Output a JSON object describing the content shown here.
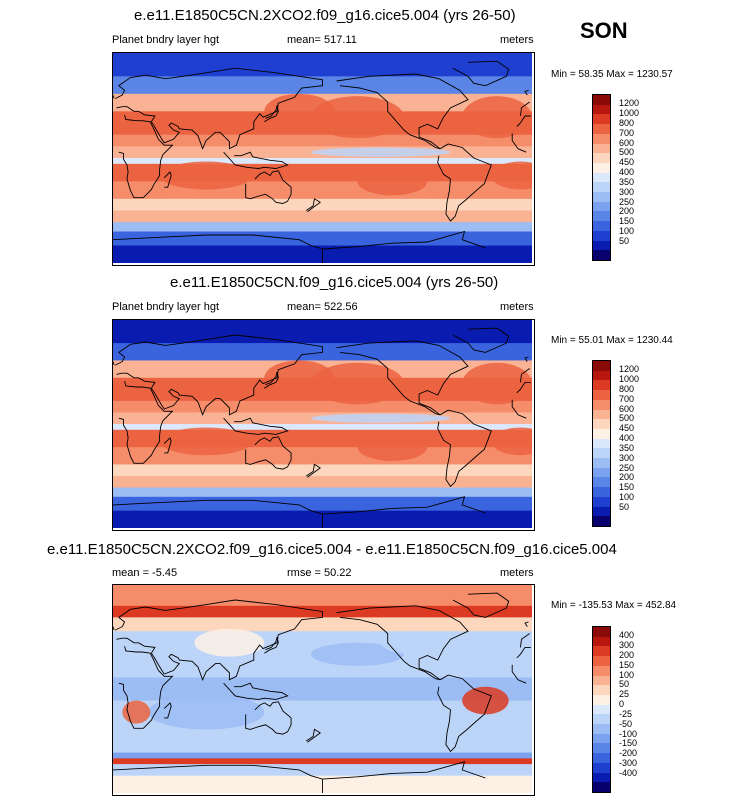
{
  "season": "SON",
  "colors": {
    "abs_scale": [
      "#08006d",
      "#0a1cb0",
      "#1e3fd0",
      "#3a63de",
      "#5a85e6",
      "#7aa2ee",
      "#9cbcf4",
      "#bcd4f8",
      "#dbe7fb",
      "#fdf1e6",
      "#fcd6bd",
      "#f9b394",
      "#f58c6a",
      "#ec6341",
      "#dc3a22",
      "#b81710",
      "#8a0a08"
    ],
    "diff_scale": [
      "#08006d",
      "#0a1cb0",
      "#1e3fd0",
      "#3a63de",
      "#5a85e6",
      "#7aa2ee",
      "#9cbcf4",
      "#bcd4f8",
      "#dbe7fb",
      "#fdf1e6",
      "#fcd6bd",
      "#f9b394",
      "#f58c6a",
      "#ec6341",
      "#dc3a22",
      "#b81710",
      "#8a0a08"
    ]
  },
  "panels": [
    {
      "title": "e.e11.E1850C5CN.2XCO2.f09_g16.cice5.004 (yrs 26-50)",
      "left_label": "Planet bndry layer hgt",
      "center_label": "mean= 517.11",
      "right_label": "meters",
      "minmax": "Min =  58.35 Max = 1230.57",
      "kind": "abs"
    },
    {
      "title": "e.e11.E1850C5CN.f09_g16.cice5.004 (yrs 26-50)",
      "left_label": "Planet bndry layer hgt",
      "center_label": "mean= 522.56",
      "right_label": "meters",
      "minmax": "Min =  55.01 Max = 1230.44",
      "kind": "abs"
    },
    {
      "title": "e.e11.E1850C5CN.2XCO2.f09_g16.cice5.004 - e.e11.E1850C5CN.f09_g16.cice5.004",
      "left_label": "mean =  -5.45",
      "center_label": "rmse =  50.22",
      "right_label": "meters",
      "minmax": "Min = -135.53 Max = 452.84",
      "kind": "diff"
    }
  ],
  "chart_data": [
    {
      "type": "heatmap",
      "title": "e.e11.E1850C5CN.2XCO2.f09_g16.cice5.004 (yrs 26-50)",
      "variable": "Planet bndry layer hgt",
      "units": "meters",
      "mean": 517.11,
      "min": 58.35,
      "max": 1230.57,
      "contour_levels": [
        50,
        100,
        150,
        200,
        250,
        300,
        350,
        400,
        450,
        500,
        600,
        700,
        800,
        1000,
        1200
      ]
    },
    {
      "type": "heatmap",
      "title": "e.e11.E1850C5CN.f09_g16.cice5.004 (yrs 26-50)",
      "variable": "Planet bndry layer hgt",
      "units": "meters",
      "mean": 522.56,
      "min": 55.01,
      "max": 1230.44,
      "contour_levels": [
        50,
        100,
        150,
        200,
        250,
        300,
        350,
        400,
        450,
        500,
        600,
        700,
        800,
        1000,
        1200
      ]
    },
    {
      "type": "heatmap",
      "title": "e.e11.E1850C5CN.2XCO2.f09_g16.cice5.004 - e.e11.E1850C5CN.f09_g16.cice5.004",
      "units": "meters",
      "mean": -5.45,
      "rmse": 50.22,
      "min": -135.53,
      "max": 452.84,
      "contour_levels": [
        -400,
        -300,
        -200,
        -150,
        -100,
        -50,
        -25,
        0,
        25,
        50,
        100,
        150,
        200,
        300,
        400
      ]
    }
  ],
  "abs_ticks": [
    "1200",
    "1000",
    "800",
    "700",
    "600",
    "500",
    "450",
    "400",
    "350",
    "300",
    "250",
    "200",
    "150",
    "100",
    "50"
  ],
  "diff_ticks": [
    "400",
    "300",
    "200",
    "150",
    "100",
    "50",
    "25",
    "0",
    "-25",
    "-50",
    "-100",
    "-150",
    "-200",
    "-300",
    "-400"
  ]
}
